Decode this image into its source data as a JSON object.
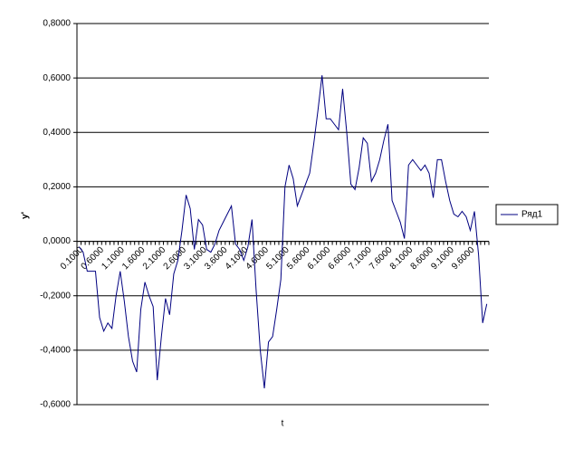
{
  "chart_data": {
    "type": "line",
    "x_label": "t",
    "y_label": "y'",
    "categories": [
      "0.1000",
      null,
      null,
      null,
      null,
      "0.6000",
      null,
      null,
      null,
      null,
      "1.1000",
      null,
      null,
      null,
      null,
      "1.6000",
      null,
      null,
      null,
      null,
      "2.1000",
      null,
      null,
      null,
      null,
      "2.6000",
      null,
      null,
      null,
      null,
      "3.1000",
      null,
      null,
      null,
      null,
      "3.6000",
      null,
      null,
      null,
      null,
      "4.1000",
      null,
      null,
      null,
      null,
      "4.6000",
      null,
      null,
      null,
      null,
      "5.1000",
      null,
      null,
      null,
      null,
      "5.6000",
      null,
      null,
      null,
      null,
      "6.1000",
      null,
      null,
      null,
      null,
      "6.6000",
      null,
      null,
      null,
      null,
      "7.1000",
      null,
      null,
      null,
      null,
      "7.6000",
      null,
      null,
      null,
      null,
      "8.1000",
      null,
      null,
      null,
      null,
      "8.6000",
      null,
      null,
      null,
      null,
      "9.1000",
      null,
      null,
      null,
      null,
      "9.6000",
      null,
      null,
      null,
      null
    ],
    "series": [
      {
        "name": "Ряд1",
        "color": "#000080",
        "values": [
          -0.02,
          -0.04,
          -0.11,
          -0.11,
          -0.11,
          -0.28,
          -0.33,
          -0.3,
          -0.32,
          -0.2,
          -0.11,
          -0.22,
          -0.35,
          -0.44,
          -0.48,
          -0.25,
          -0.15,
          -0.2,
          -0.24,
          -0.51,
          -0.35,
          -0.21,
          -0.27,
          -0.12,
          -0.07,
          0.04,
          0.17,
          0.12,
          -0.03,
          0.08,
          0.06,
          -0.03,
          -0.04,
          -0.01,
          0.04,
          0.07,
          0.1,
          0.13,
          -0.01,
          -0.03,
          -0.07,
          -0.02,
          0.08,
          -0.18,
          -0.4,
          -0.54,
          -0.37,
          -0.35,
          -0.25,
          -0.14,
          0.2,
          0.28,
          0.23,
          0.13,
          0.17,
          0.21,
          0.25,
          0.36,
          0.48,
          0.61,
          0.45,
          0.45,
          0.43,
          0.41,
          0.56,
          0.4,
          0.21,
          0.19,
          0.27,
          0.38,
          0.36,
          0.22,
          0.25,
          0.3,
          0.37,
          0.43,
          0.15,
          0.11,
          0.07,
          0.01,
          0.28,
          0.3,
          0.28,
          0.26,
          0.28,
          0.25,
          0.16,
          0.3,
          0.3,
          0.22,
          0.15,
          0.1,
          0.09,
          0.11,
          0.09,
          0.04,
          0.11,
          -0.05,
          -0.3,
          -0.23
        ]
      }
    ],
    "ylim": [
      -0.6,
      0.8
    ],
    "yticks": [
      {
        "value": -0.6,
        "label": "-0,6000"
      },
      {
        "value": -0.4,
        "label": "-0,4000"
      },
      {
        "value": -0.2,
        "label": "-0,2000"
      },
      {
        "value": 0,
        "label": "0,0000"
      },
      {
        "value": 0.2,
        "label": "0,2000"
      },
      {
        "value": 0.4,
        "label": "0,4000"
      },
      {
        "value": 0.6,
        "label": "0,6000"
      },
      {
        "value": 0.8,
        "label": "0,8000"
      }
    ],
    "grid": true,
    "legend": "right"
  }
}
